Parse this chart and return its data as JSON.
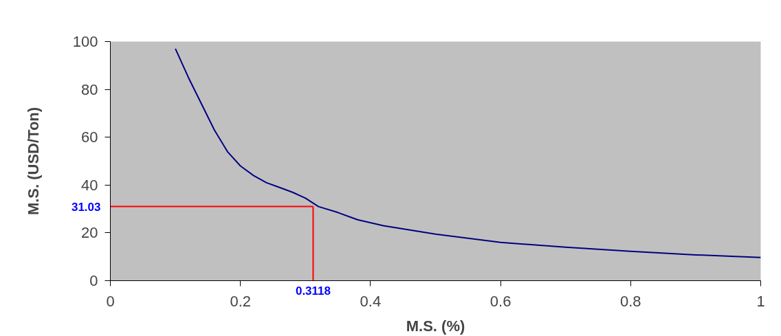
{
  "chart_data": {
    "type": "line",
    "xlabel": "M.S. (%)",
    "ylabel": "M.S. (USD/Ton)",
    "x": [
      0.1,
      0.12,
      0.14,
      0.16,
      0.18,
      0.2,
      0.22,
      0.24,
      0.26,
      0.28,
      0.3,
      0.32,
      0.35,
      0.38,
      0.42,
      0.5,
      0.6,
      0.7,
      0.8,
      0.9,
      1.0
    ],
    "series": [
      {
        "color": "#000080",
        "values": [
          97,
          85,
          74,
          63,
          54,
          48,
          44,
          41,
          39,
          37,
          34.5,
          31,
          28.5,
          25.5,
          23,
          19.5,
          16,
          14,
          12.3,
          10.8,
          9.7
        ]
      }
    ],
    "xlim": [
      0,
      1
    ],
    "ylim": [
      0,
      100
    ],
    "xticks": [
      0,
      {
        "value": 0.2,
        "label": "0.2"
      },
      {
        "value": 0.4,
        "label": "0.4"
      },
      {
        "value": 0.6,
        "label": "0.6"
      },
      {
        "value": 0.8,
        "label": "0.8"
      },
      1
    ],
    "yticks": [
      0,
      20,
      40,
      60,
      80,
      100
    ],
    "ref_lines": [
      {
        "axis": "y",
        "value": 31.03,
        "label": "31.03",
        "color": "#ff0000"
      },
      {
        "axis": "x",
        "value": 0.3118,
        "label": "0.3118",
        "color": "#ff0000"
      }
    ],
    "grid": false,
    "marker": "none",
    "line_style": "solid"
  }
}
